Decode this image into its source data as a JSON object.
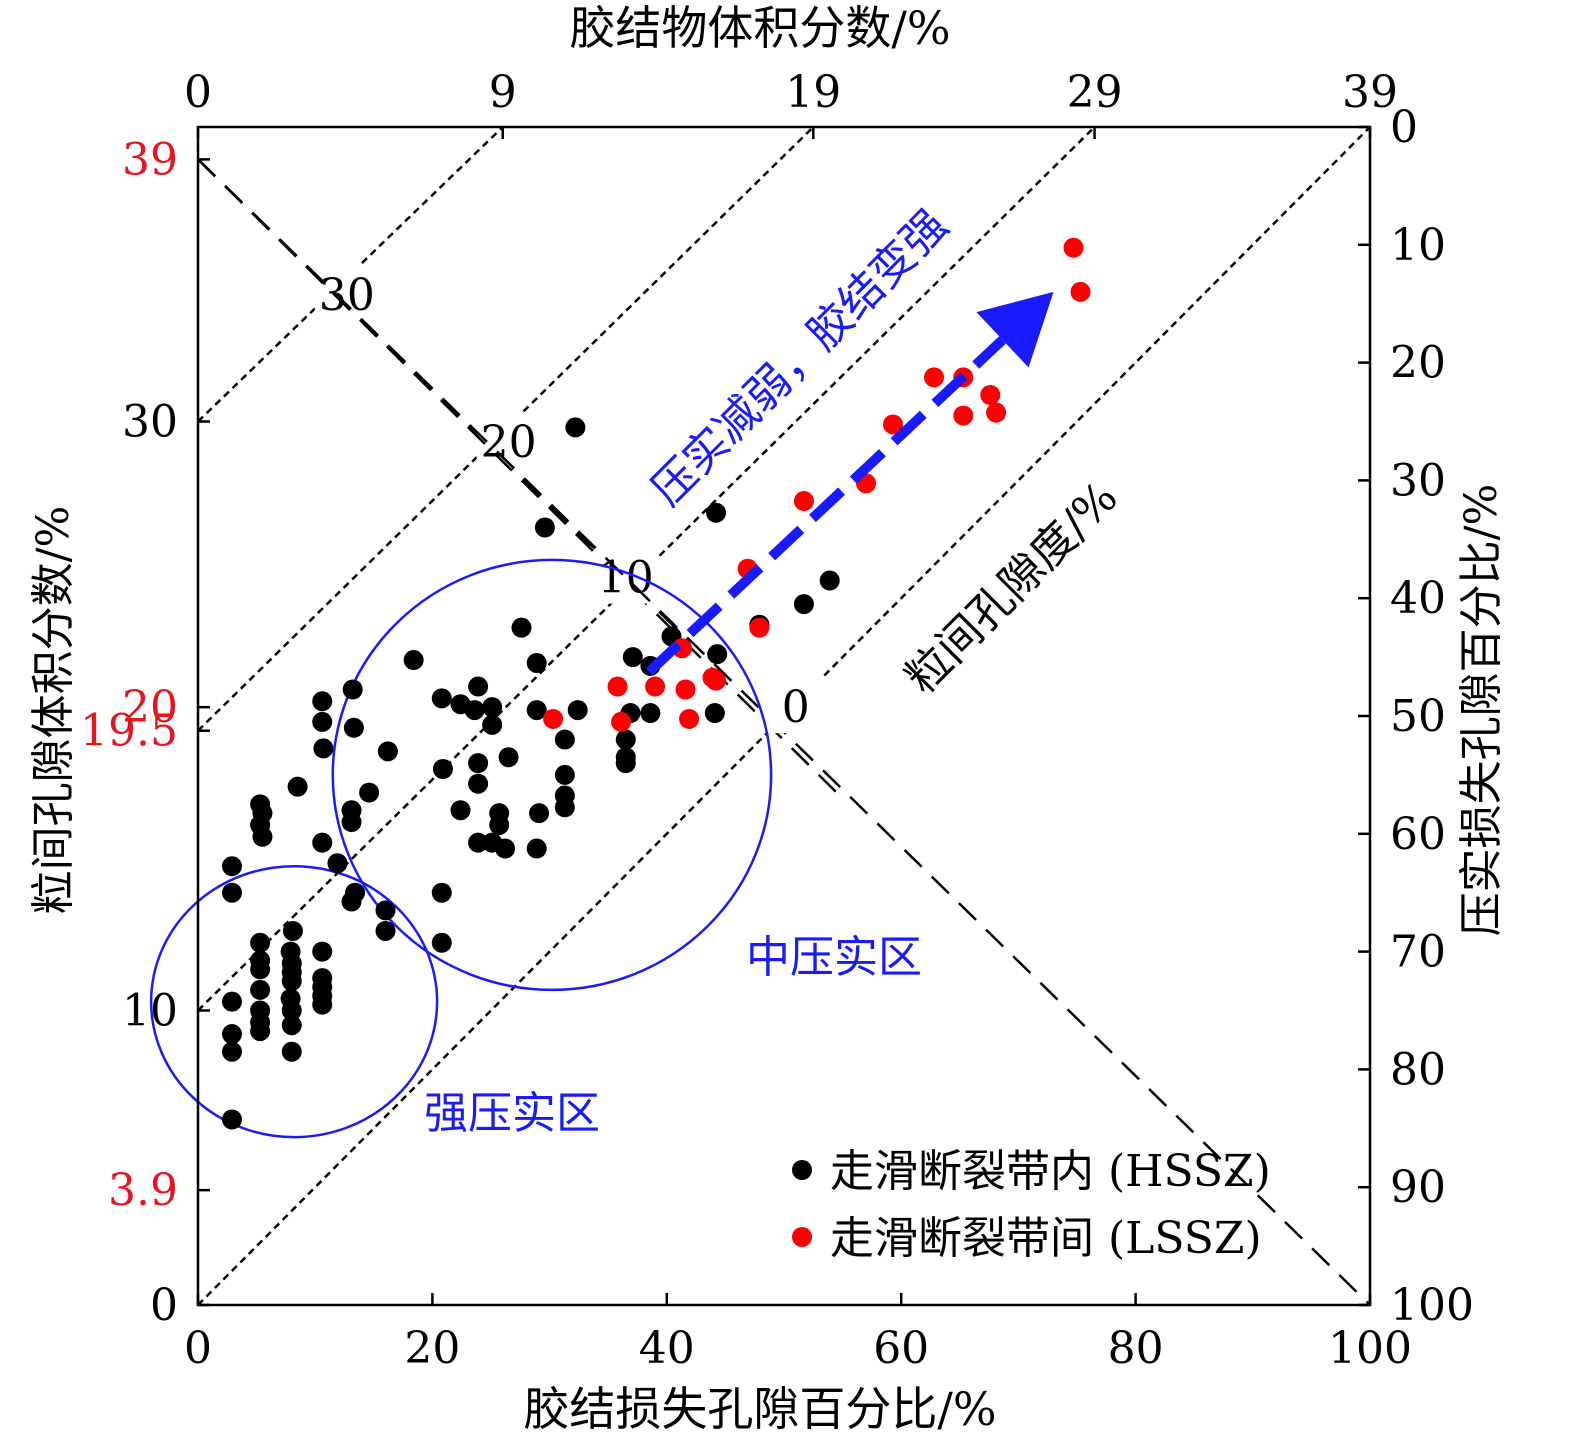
{
  "chart_data": {
    "type": "scatter",
    "title": "",
    "xlabel": "胶结损失孔隙百分比/%",
    "ylabel": "粒间孔隙体积分数/%",
    "top_label": "胶结物体积分数/%",
    "right_label": "压实损失孔隙百分比/%",
    "xlim": [
      0,
      100
    ],
    "ylim": [
      0,
      40
    ],
    "x_ticks": [
      "0",
      "20",
      "40",
      "60",
      "80",
      "100"
    ],
    "x_tick_values": [
      0,
      20,
      40,
      60,
      80,
      100
    ],
    "y_ticks": [
      "0",
      "10",
      "30"
    ],
    "y_tick_values": [
      0,
      10,
      30
    ],
    "y_red_ticks": [
      "3.9",
      "19.5",
      "20",
      "39"
    ],
    "y_red_tick_values": [
      3.9,
      19.5,
      20.3,
      38.9
    ],
    "top_ticks": [
      "0",
      "9",
      "19",
      "29",
      "39"
    ],
    "top_tick_positions": [
      0,
      26,
      52.5,
      76.5,
      100
    ],
    "right_ticks": [
      "0",
      "10",
      "20",
      "30",
      "40",
      "50",
      "60",
      "70",
      "80",
      "90",
      "100"
    ],
    "right_tick_values": [
      0,
      10,
      20,
      30,
      40,
      50,
      60,
      70,
      80,
      90,
      100
    ],
    "porosity_label": "粒间孔隙度/%",
    "porosity_lines": [
      {
        "label": "30",
        "x1": 0,
        "y1": 38.9,
        "x2": 33.5,
        "y2": 25.8,
        "label_x": 12.7,
        "label_y": 34.3
      },
      {
        "label": "20",
        "x1": 0,
        "y1": 38.9,
        "x2": 42,
        "y2": 22.5,
        "label_x": 26.5,
        "label_y": 29.3
      },
      {
        "label": "10",
        "x1": 0,
        "y1": 38.9,
        "x2": 55,
        "y2": 17.2,
        "label_x": 36.5,
        "label_y": 24.7
      },
      {
        "label": "0",
        "x1": 0,
        "y1": 38.9,
        "x2": 100,
        "y2": 0,
        "label_x": 51,
        "label_y": 20.3
      }
    ],
    "cement_lines": [
      {
        "x1": 0,
        "y1": 30,
        "x2": 26,
        "y2": 40
      },
      {
        "x1": 0,
        "y1": 19.5,
        "x2": 52.5,
        "y2": 40
      },
      {
        "x1": 0,
        "y1": 10,
        "x2": 76.5,
        "y2": 40
      },
      {
        "x1": 0,
        "y1": 0,
        "x2": 100,
        "y2": 40
      }
    ],
    "ellipses": [
      {
        "cx": 8.2,
        "cy": 10.3,
        "rx": 12.2,
        "ry": 4.6,
        "label": "强压实区",
        "label_x": 27.5,
        "label_y": 6.5
      },
      {
        "cx": 30.2,
        "cy": 18.0,
        "rx": 18.7,
        "ry": 7.3,
        "label": "中压实区",
        "label_x": 54.5,
        "label_y": 11.8
      }
    ],
    "arrow": {
      "x1": 38.5,
      "y1": 21.5,
      "x2": 73,
      "y2": 34.4,
      "label": "压实减弱，胶结变强"
    },
    "legend_position": "bottom-right",
    "series": [
      {
        "name": "走滑断裂带内 (HSSZ)",
        "color": "#000000",
        "points": [
          [
            32.2,
            29.8
          ],
          [
            29.6,
            26.4
          ],
          [
            44.2,
            26.9
          ],
          [
            53.9,
            24.6
          ],
          [
            51.7,
            23.8
          ],
          [
            47.9,
            23.1
          ],
          [
            40.4,
            22.7
          ],
          [
            37.1,
            22.0
          ],
          [
            44.3,
            22.1
          ],
          [
            38.6,
            21.7
          ],
          [
            27.6,
            23.0
          ],
          [
            28.9,
            21.8
          ],
          [
            18.4,
            21.9
          ],
          [
            23.9,
            21.0
          ],
          [
            20.8,
            20.6
          ],
          [
            22.4,
            20.4
          ],
          [
            23.6,
            20.2
          ],
          [
            25.1,
            20.3
          ],
          [
            28.9,
            20.2
          ],
          [
            32.4,
            20.2
          ],
          [
            36.9,
            20.1
          ],
          [
            38.6,
            20.1
          ],
          [
            44.1,
            20.1
          ],
          [
            25.1,
            19.7
          ],
          [
            13.2,
            20.9
          ],
          [
            10.6,
            20.5
          ],
          [
            10.6,
            19.8
          ],
          [
            10.7,
            18.9
          ],
          [
            13.3,
            19.6
          ],
          [
            16.2,
            18.8
          ],
          [
            31.3,
            19.2
          ],
          [
            36.5,
            19.2
          ],
          [
            36.5,
            18.6
          ],
          [
            36.5,
            18.4
          ],
          [
            23.9,
            18.4
          ],
          [
            26.5,
            18.6
          ],
          [
            20.9,
            18.2
          ],
          [
            31.3,
            18.0
          ],
          [
            23.9,
            17.7
          ],
          [
            8.5,
            17.6
          ],
          [
            14.6,
            17.4
          ],
          [
            31.3,
            17.3
          ],
          [
            31.3,
            16.9
          ],
          [
            5.3,
            17.0
          ],
          [
            5.5,
            16.7
          ],
          [
            5.3,
            16.3
          ],
          [
            5.5,
            15.9
          ],
          [
            13.1,
            16.8
          ],
          [
            13.1,
            16.4
          ],
          [
            22.4,
            16.8
          ],
          [
            25.7,
            16.7
          ],
          [
            29.1,
            16.7
          ],
          [
            25.7,
            16.3
          ],
          [
            23.9,
            15.7
          ],
          [
            25.1,
            15.7
          ],
          [
            26.2,
            15.5
          ],
          [
            28.9,
            15.5
          ],
          [
            10.6,
            15.7
          ],
          [
            11.9,
            15.0
          ],
          [
            2.9,
            14.9
          ],
          [
            13.4,
            14.0
          ],
          [
            13.1,
            13.7
          ],
          [
            16.0,
            13.4
          ],
          [
            2.9,
            14.0
          ],
          [
            20.8,
            14.0
          ],
          [
            16.0,
            12.7
          ],
          [
            20.8,
            12.3
          ],
          [
            8.1,
            12.7
          ],
          [
            5.3,
            12.3
          ],
          [
            7.9,
            12.0
          ],
          [
            10.6,
            12.0
          ],
          [
            5.3,
            11.7
          ],
          [
            8.0,
            11.6
          ],
          [
            5.3,
            11.4
          ],
          [
            8.0,
            11.3
          ],
          [
            10.6,
            11.1
          ],
          [
            8.0,
            11.0
          ],
          [
            10.6,
            10.8
          ],
          [
            5.3,
            10.7
          ],
          [
            7.9,
            10.4
          ],
          [
            10.6,
            10.5
          ],
          [
            2.9,
            10.3
          ],
          [
            5.3,
            10.0
          ],
          [
            8.0,
            10.0
          ],
          [
            10.6,
            10.2
          ],
          [
            5.3,
            9.6
          ],
          [
            8.0,
            9.5
          ],
          [
            5.3,
            9.3
          ],
          [
            2.9,
            9.2
          ],
          [
            2.9,
            8.6
          ],
          [
            8.0,
            8.6
          ],
          [
            2.9,
            6.3
          ]
        ]
      },
      {
        "name": "走滑断裂带间 (LSSZ)",
        "color": "#ff0000",
        "points": [
          [
            74.7,
            35.9
          ],
          [
            75.3,
            34.4
          ],
          [
            62.8,
            31.5
          ],
          [
            65.3,
            31.5
          ],
          [
            67.6,
            30.9
          ],
          [
            65.3,
            30.2
          ],
          [
            68.1,
            30.3
          ],
          [
            59.3,
            29.9
          ],
          [
            57.0,
            27.9
          ],
          [
            51.7,
            27.3
          ],
          [
            46.9,
            25.0
          ],
          [
            47.9,
            23.0
          ],
          [
            41.3,
            22.3
          ],
          [
            43.9,
            21.3
          ],
          [
            44.2,
            21.2
          ],
          [
            35.8,
            21.0
          ],
          [
            39.0,
            21.0
          ],
          [
            41.6,
            20.9
          ],
          [
            30.3,
            19.9
          ],
          [
            36.1,
            19.8
          ],
          [
            41.9,
            19.9
          ]
        ]
      }
    ]
  }
}
